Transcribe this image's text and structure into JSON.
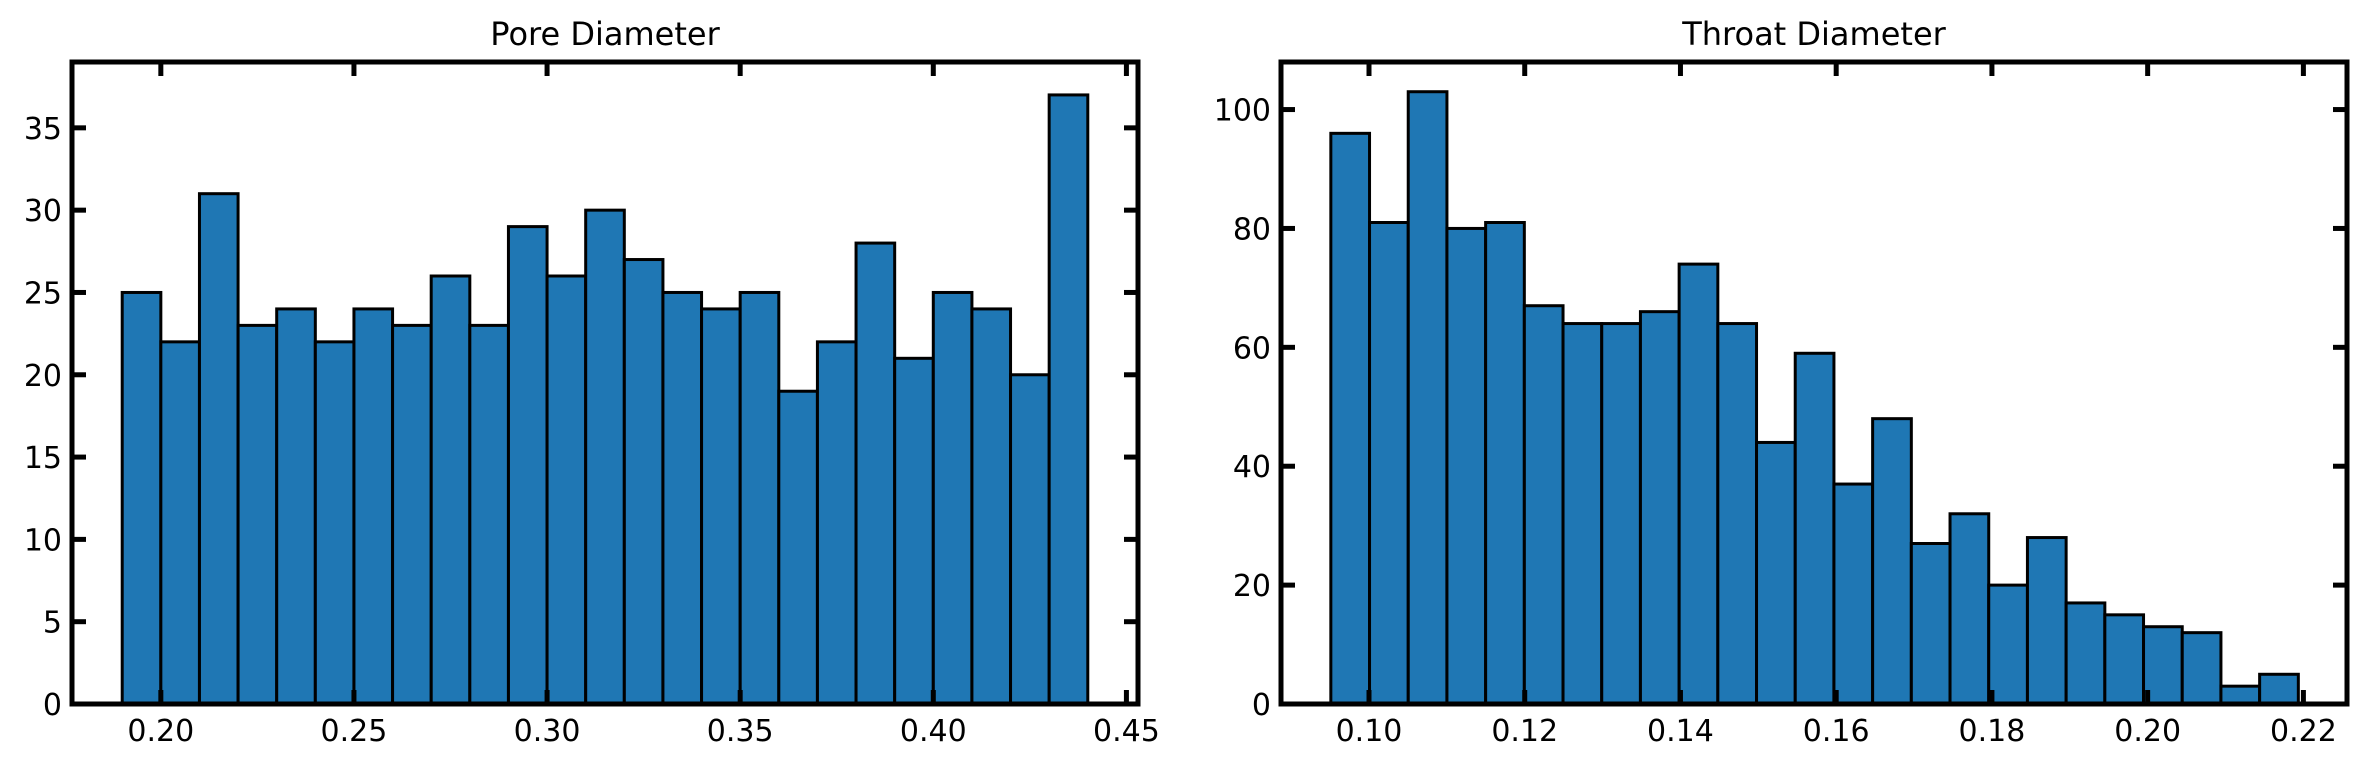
{
  "chart_data": [
    {
      "type": "bar",
      "title": "Pore Diameter",
      "xlim": [
        0.177,
        0.453
      ],
      "ylim": [
        0,
        39
      ],
      "xticks": [
        0.2,
        0.25,
        0.3,
        0.35,
        0.4,
        0.45
      ],
      "xtick_labels": [
        "0.20",
        "0.25",
        "0.30",
        "0.35",
        "0.40",
        "0.45"
      ],
      "yticks": [
        0,
        5,
        10,
        15,
        20,
        25,
        30,
        35
      ],
      "ytick_labels": [
        "0",
        "5",
        "10",
        "15",
        "20",
        "25",
        "30",
        "35"
      ],
      "bin_start": 0.19,
      "bin_width": 0.01,
      "values": [
        25,
        22,
        31,
        23,
        24,
        22,
        24,
        23,
        26,
        23,
        29,
        26,
        30,
        27,
        25,
        24,
        25,
        19,
        22,
        28,
        21,
        25,
        24,
        20,
        37
      ],
      "color": "#1f77b4"
    },
    {
      "type": "bar",
      "title": "Throat Diameter",
      "xlim": [
        0.0887,
        0.2256
      ],
      "ylim": [
        0,
        108
      ],
      "xticks": [
        0.1,
        0.12,
        0.14,
        0.16,
        0.18,
        0.2,
        0.22
      ],
      "xtick_labels": [
        "0.10",
        "0.12",
        "0.14",
        "0.16",
        "0.18",
        "0.20",
        "0.22"
      ],
      "yticks": [
        0,
        20,
        40,
        60,
        80,
        100
      ],
      "ytick_labels": [
        "0",
        "20",
        "40",
        "60",
        "80",
        "100"
      ],
      "bin_start": 0.0951,
      "bin_width": 0.00497,
      "values": [
        96,
        81,
        103,
        80,
        81,
        67,
        64,
        64,
        66,
        74,
        64,
        44,
        59,
        37,
        48,
        27,
        32,
        20,
        28,
        17,
        15,
        13,
        12,
        3,
        5
      ],
      "color": "#1f77b4"
    }
  ]
}
